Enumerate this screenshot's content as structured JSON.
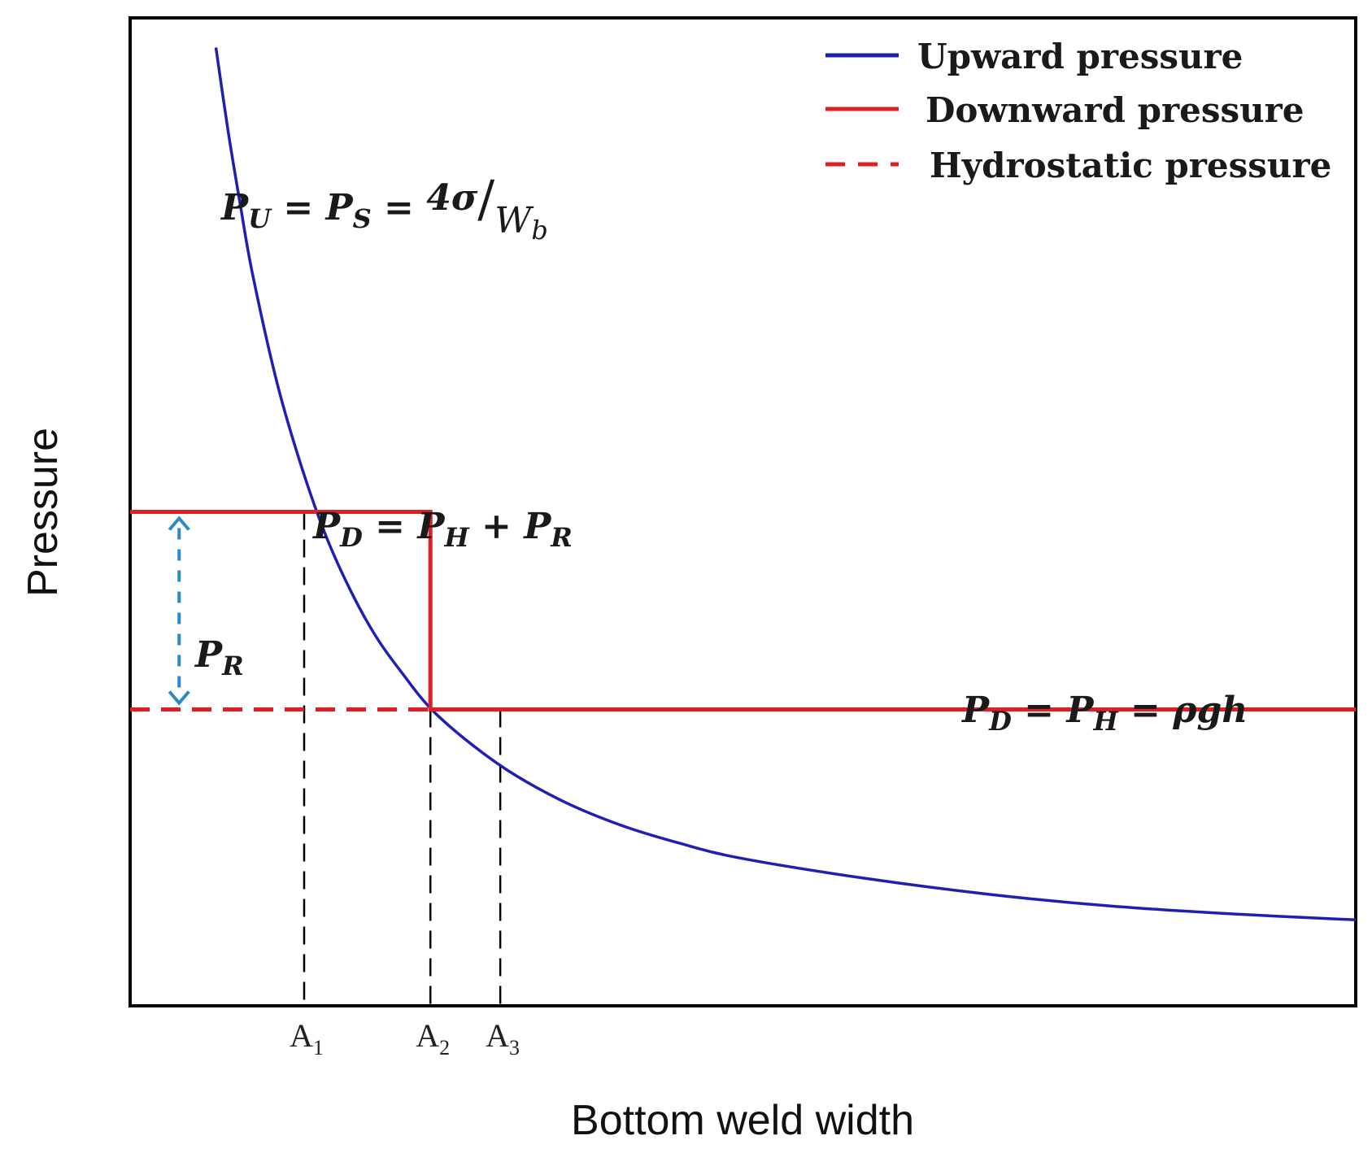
{
  "chart_data": {
    "type": "line",
    "xlabel": "Bottom weld width",
    "ylabel": "Pressure",
    "axes_numeric_ticks": false,
    "legend_position": "top-right",
    "colors": {
      "upward": "#1f1fb4",
      "downward": "#dd1f26",
      "hydrostatic": "#dd1f26",
      "reference_lines": "#000000",
      "pr_arrow": "#2a8ac4"
    },
    "legend": [
      {
        "label": "Upward pressure",
        "style": "solid",
        "color": "#1f1fb4"
      },
      {
        "label": "Downward pressure",
        "style": "solid",
        "color": "#dd1f26"
      },
      {
        "label": "Hydrostatic pressure",
        "style": "dashed",
        "color": "#dd1f26"
      }
    ],
    "series": [
      {
        "name": "Upward pressure",
        "style": "solid",
        "x": [
          0.07,
          0.08,
          0.09,
          0.1,
          0.12,
          0.14,
          0.16,
          0.18,
          0.2,
          0.22,
          0.25,
          0.3,
          0.35,
          0.4,
          0.45,
          0.5,
          0.6,
          0.7,
          0.8,
          0.9,
          1.0
        ],
        "y": [
          0.97,
          0.885,
          0.81,
          0.74,
          0.63,
          0.545,
          0.475,
          0.42,
          0.375,
          0.34,
          0.295,
          0.245,
          0.209,
          0.183,
          0.164,
          0.149,
          0.129,
          0.113,
          0.101,
          0.093,
          0.087
        ]
      },
      {
        "name": "Downward pressure",
        "style": "solid",
        "x": [
          0.0,
          0.245,
          0.245,
          1.0
        ],
        "y": [
          0.5,
          0.5,
          0.3,
          0.3
        ]
      },
      {
        "name": "Hydrostatic pressure",
        "style": "dashed",
        "x": [
          0.0,
          0.245
        ],
        "y": [
          0.3,
          0.3
        ]
      }
    ],
    "reference_lines": [
      {
        "label_base": "A",
        "label_sub": "1",
        "x": 0.142,
        "y_top": 0.5
      },
      {
        "label_base": "A",
        "label_sub": "2",
        "x": 0.245,
        "y_top": 0.3
      },
      {
        "label_base": "A",
        "label_sub": "3",
        "x": 0.302,
        "y_top": 0.3
      }
    ],
    "pr_arrow": {
      "x": 0.04,
      "y_from": 0.3,
      "y_to": 0.5
    },
    "annotations": {
      "pu": {
        "a": "P",
        "a_sub": "U",
        "eq1": " = ",
        "b": "P",
        "b_sub": "S",
        "eq2": " = ",
        "num": "4σ",
        "slash": "/",
        "den": "W",
        "den_sub": "b"
      },
      "pd_upper": {
        "a": "P",
        "a_sub": "D",
        "eq1": " = ",
        "b": "P",
        "b_sub": "H",
        "plus": " + ",
        "c": "P",
        "c_sub": "R"
      },
      "pr": {
        "a": "P",
        "a_sub": "R"
      },
      "pd_lower": {
        "a": "P",
        "a_sub": "D",
        "eq1": " = ",
        "b": "P",
        "b_sub": "H",
        "eq2": " = ",
        "rho": "ρgh"
      }
    }
  }
}
